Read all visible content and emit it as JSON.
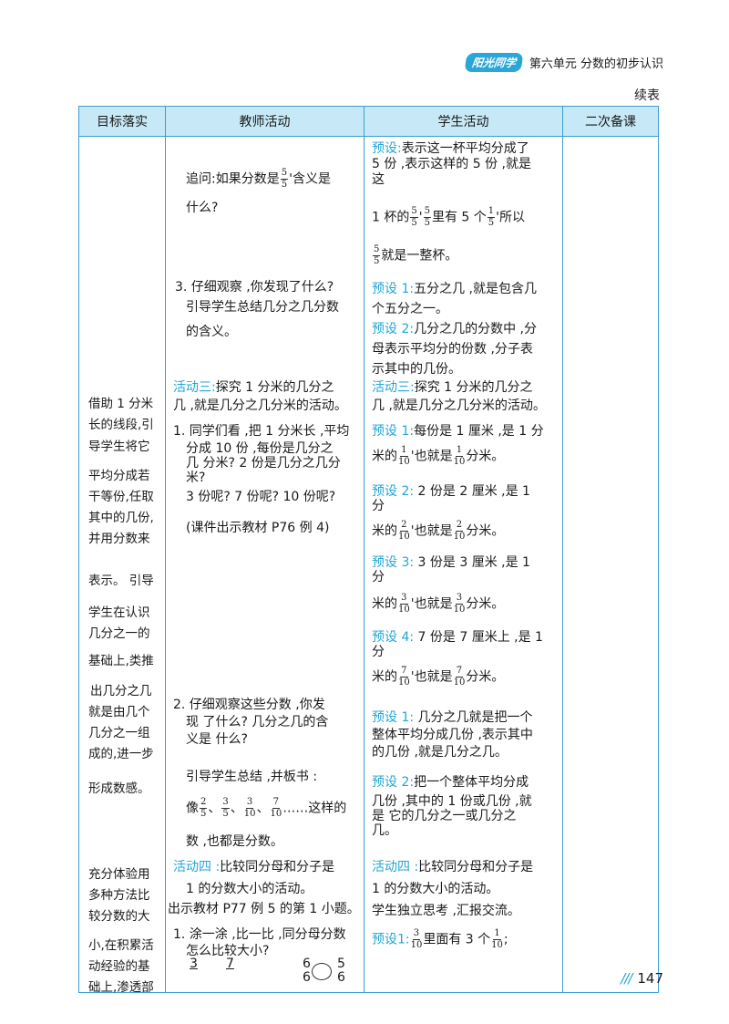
{
  "header": {
    "logo": "阳光同学",
    "title": "第六单元  分数的初步认识"
  },
  "continued": "续表",
  "columns": [
    "目标落实",
    "教师活动",
    "学生活动",
    "二次备课"
  ],
  "goals": [
    "借助 1 分米",
    "长的线段,引",
    "导学生将它",
    "平均分成若",
    "干等份,任取",
    "其中的几份,",
    "并用分数来",
    "表示。 引导",
    "学生在认识",
    "几分之一的",
    "基础上,类推",
    "出几分之几",
    "就是由几个",
    "几分之一组",
    "成的,进一步",
    "形成数感。",
    "充分体验用",
    "多种方法比",
    "较分数的大",
    "小,在积累活",
    "动经验的基",
    "础上,渗透部"
  ],
  "teacher": {
    "ask_a": "追问:如果分数是",
    "ask_b": "含义是",
    "ask_c": "什么?",
    "q3_1": "3. 仔细观察 ,你发现了什么?",
    "q3_2": "引导学生总结几分之几分数",
    "q3_3": "的含义。",
    "act3_tag": "活动三:",
    "act3_a": "探究  1 分米的几分之",
    "act3_b": "几 ,就是几分之几分米的活动。",
    "s1_a": "1.  同学们看 ,把 1 分米长 ,平均",
    "s1_b": "分成 10 份 ,每份是几分之",
    "s1_c": "几 分米?  2 份是几分之几分",
    "s1_d": "米?",
    "s1_e": "3 份呢?  7 份呢?  10 份呢?",
    "cw": "(课件出示教材 P76 例 4)",
    "s2_a": "2.  仔细观察这些分数 ,你发",
    "s2_b": "现 了什么?  几分之几的含",
    "s2_c": "义是 什么?",
    "sum": "引导学生总结 ,并板书 :",
    "like": "像",
    "etc": "……这样的",
    "alls": "数 ,也都是分数。",
    "act4_tag": "活动四 :",
    "act4_a": "比较同分母和分子是",
    "act4_b": "1 的分数大小的活动。",
    "show": "出示教材 P77 例 5 的第 1 小题。",
    "p1_a": "1.  涂一涂 ,比一比 ,同分母分数",
    "p1_b": "怎么比较大小?",
    "bn3": "3",
    "bn7": "7",
    "bn6a": "6",
    "bn6b": "6",
    "bn5": "5",
    "bn6c": "6"
  },
  "student": {
    "ps_tag": "预设:",
    "ps_a": "表示这一杯平均分成了",
    "ps_b": "5 份 ,表示这样的  5 份 ,就是",
    "ps_c": "这",
    "cup_a": "1 杯的",
    "cup_b": "里有  5 个",
    "cup_c": "所以",
    "cup_d": "就是一整杯。",
    "p1_tag": "预设  1:",
    "p1_a": "五分之几 ,就是包含几",
    "p1_b": "个五分之一。",
    "p2_tag": "预设  2:",
    "p2_a": "几分之几的分数中 ,分",
    "p2_b": "母表示平均分的份数 ,分子表",
    "p2_c": "示其中的几份。",
    "act3_tag": "活动三:",
    "act3_a": "探究  1 分米的几分之",
    "act3_b": "几 ,就是几分之几分米的活动。",
    "r1_tag": "预设  1:",
    "r1_a": "每份是  1 厘米 ,是  1 分",
    "r2_tag": "预设  2:",
    "r2_a": " 2 份是  2 厘米 ,是  1",
    "r2_b": "分",
    "r3_tag": "预设  3:",
    "r3_a": " 3 份是  3 厘米 ,是  1",
    "r3_b": "分",
    "r4_tag": "预设  4:",
    "r4_a": " 7 份是  7 厘米上 ,是  1",
    "r4_b": "分",
    "mi": "米的",
    "also": "也就是",
    "fm": "分米。",
    "q1_tag": "预设  1:",
    "q1_a": " 几分之几就是把一个",
    "q1_b": "整体平均分成几份 ,表示其中",
    "q1_c": "的几份 ,就是几分之几。",
    "q2_tag": "预设  2:",
    "q2_a": "把一个整体平均分成",
    "q2_b": "几份 ,其中的  1 份或几份 ,就",
    "q2_c": "是 它的几分之一或几分之",
    "q2_d": "几。",
    "act4_tag": "活动四 :",
    "act4_a": "比较同分母和分子是",
    "act4_b": "1 的分数大小的活动。",
    "think": "学生独立思考 ,汇报交流。",
    "last_tag": "预设",
    "last_b": "里面有  3 个"
  },
  "page_number": "147"
}
